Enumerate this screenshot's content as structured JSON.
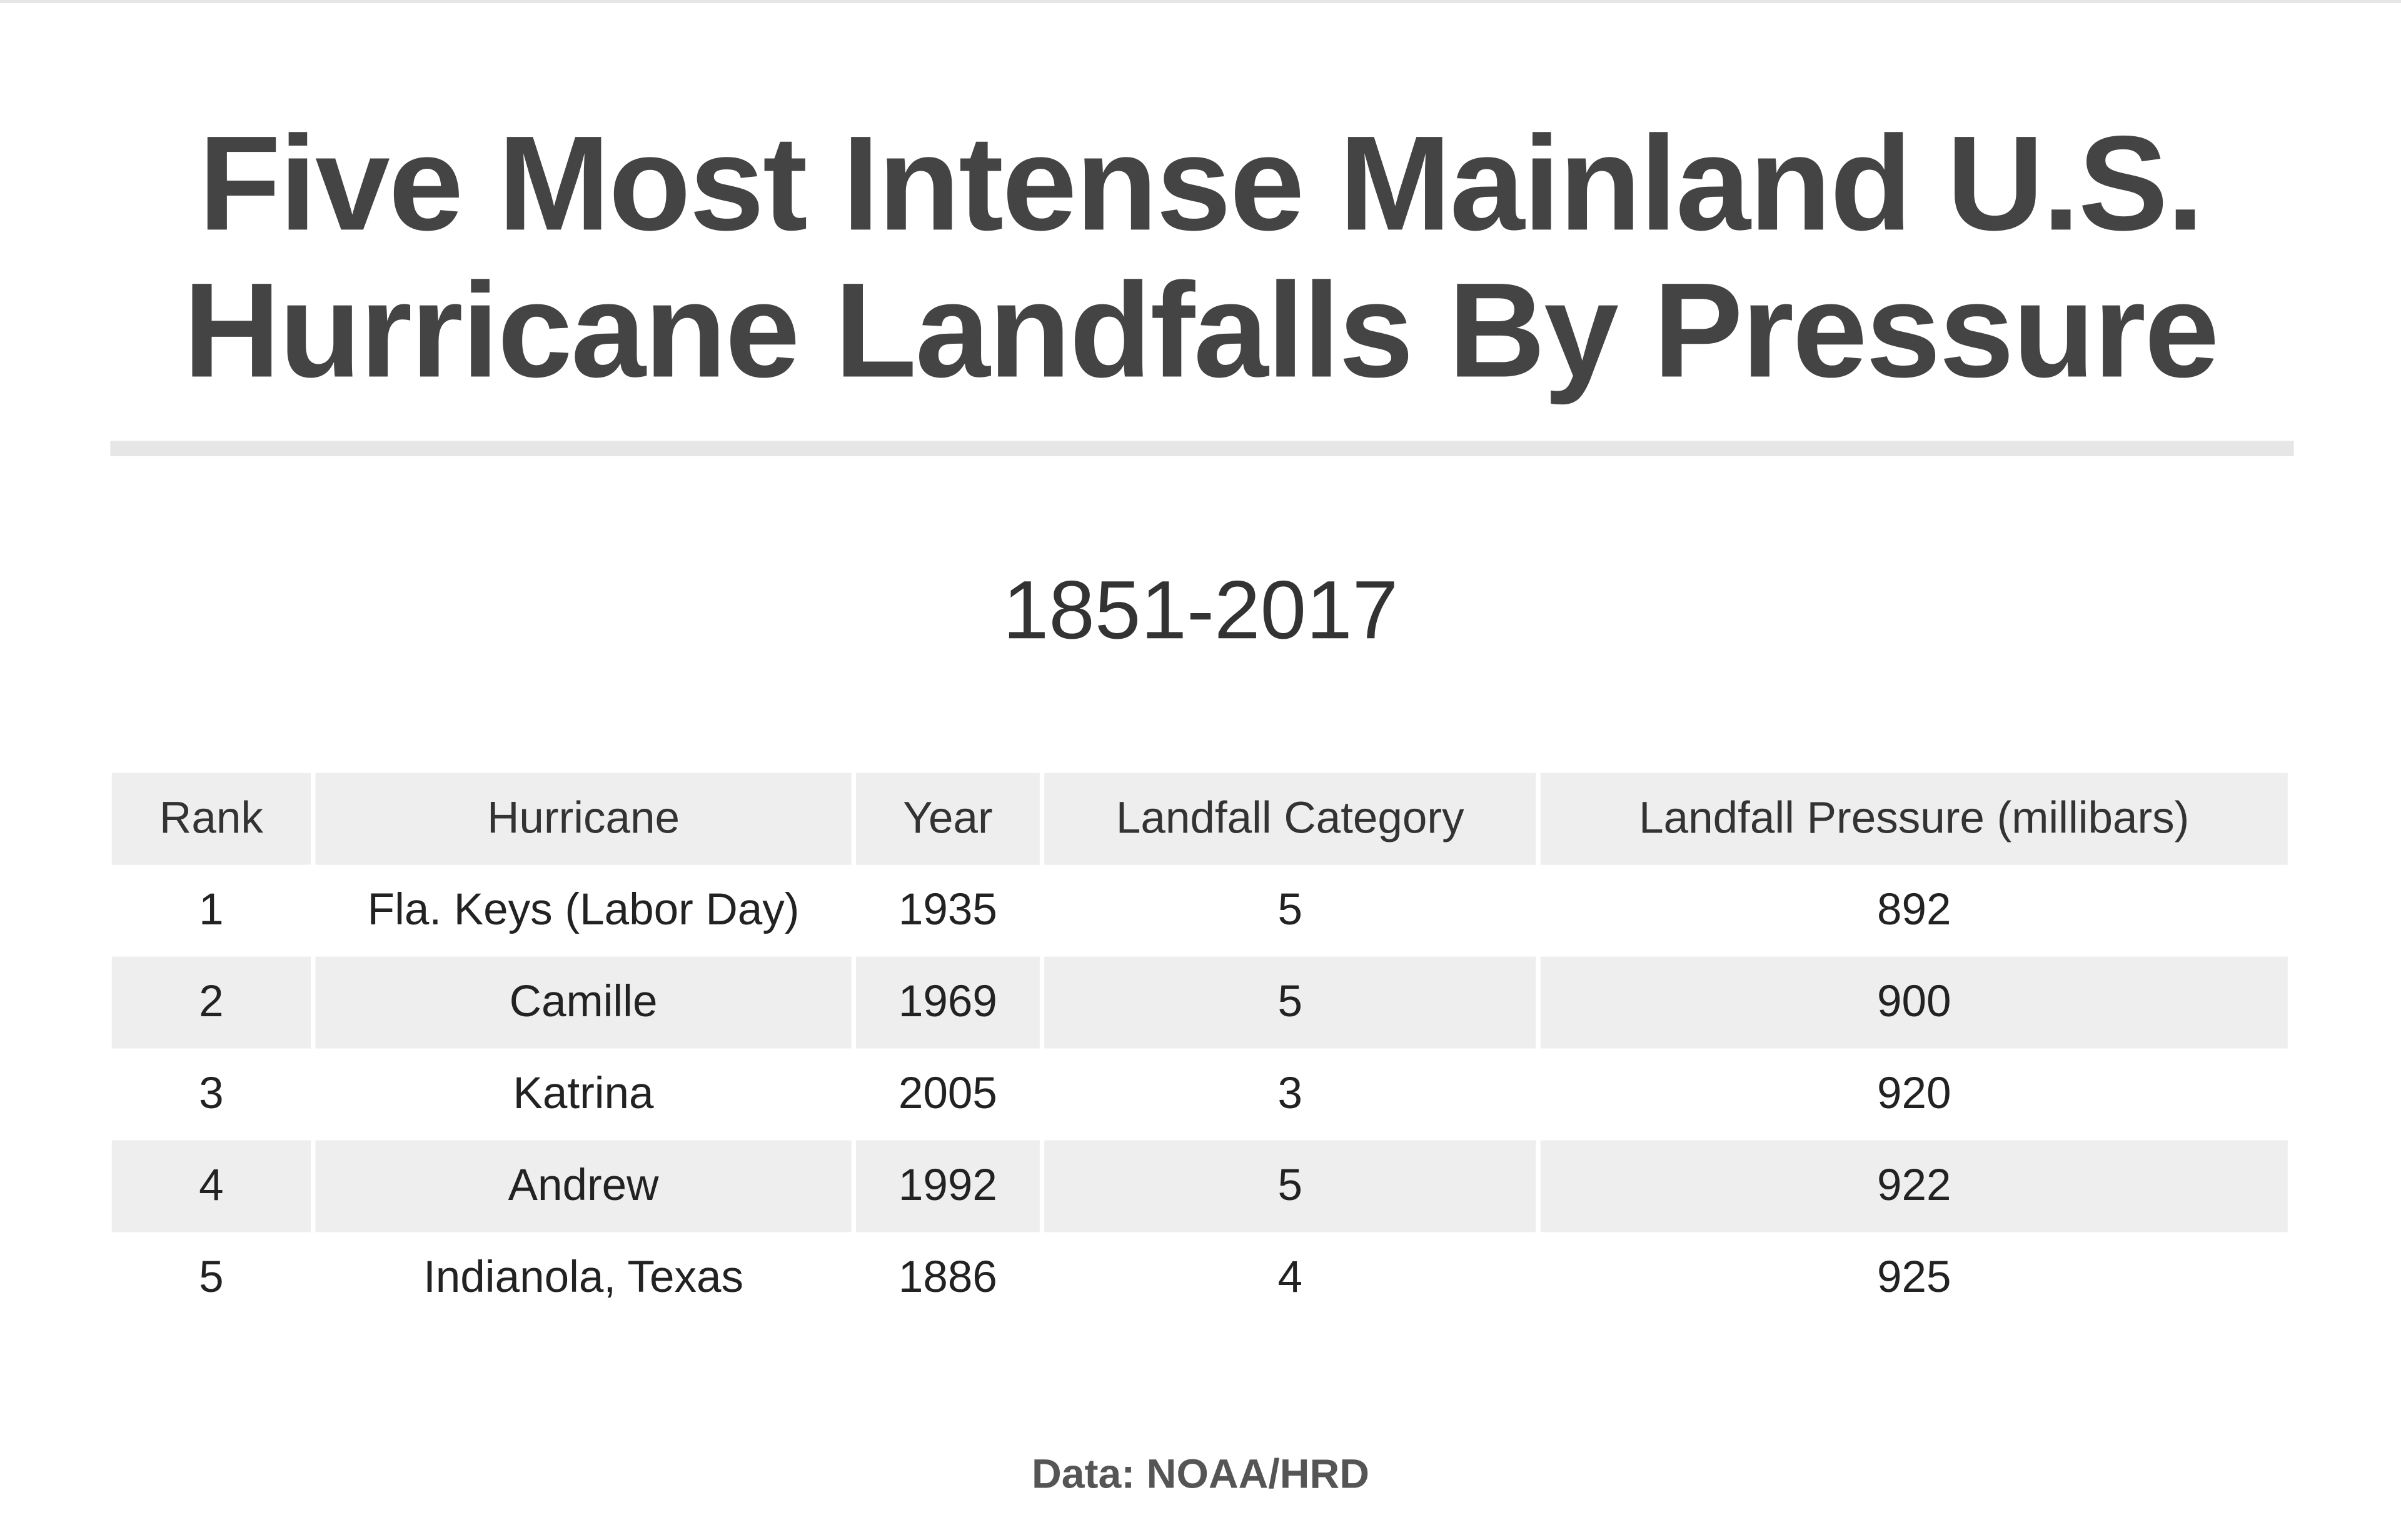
{
  "title_line1": "Five Most Intense Mainland U.S.",
  "title_line2": "Hurricane Landfalls By Pressure",
  "subtitle": "1851-2017",
  "table": {
    "headers": [
      "Rank",
      "Hurricane",
      "Year",
      "Landfall Category",
      "Landfall Pressure (millibars)"
    ],
    "rows": [
      [
        "1",
        "Fla. Keys (Labor Day)",
        "1935",
        "5",
        "892"
      ],
      [
        "2",
        "Camille",
        "1969",
        "5",
        "900"
      ],
      [
        "3",
        "Katrina",
        "2005",
        "3",
        "920"
      ],
      [
        "4",
        "Andrew",
        "1992",
        "5",
        "922"
      ],
      [
        "5",
        "Indianola, Texas",
        "1886",
        "4",
        "925"
      ]
    ]
  },
  "footer": "Data: NOAA/HRD"
}
